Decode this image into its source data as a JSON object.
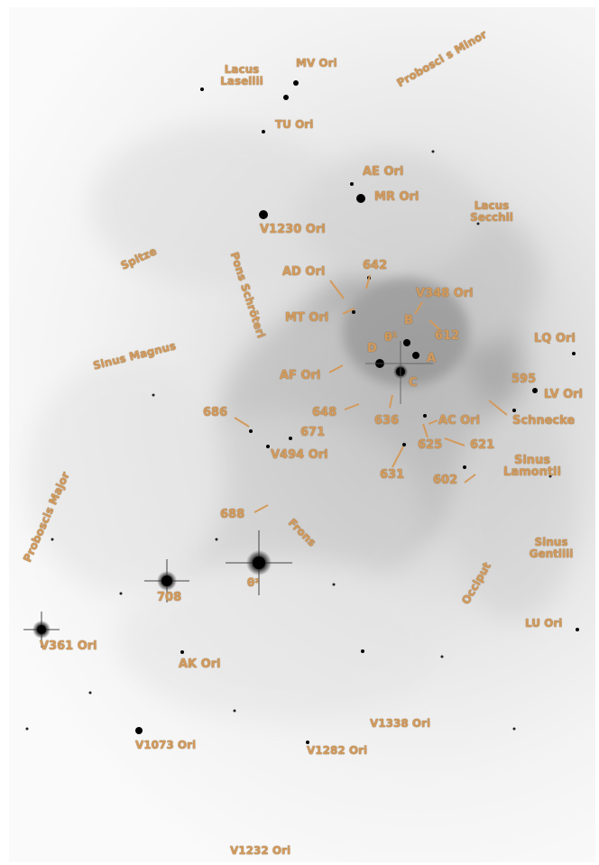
{
  "image": {
    "kind": "grayscale negative astronomical photograph of the Orion Nebula region with orange annotation labels",
    "colors": {
      "background": "#ffffff",
      "label": "#d39a5c",
      "nebula_dark": "#9a9a9a",
      "nebula_light": "#f0f0f0",
      "star": "#111111"
    }
  },
  "labels": {
    "lacus_laselli": "Lacus Lasellii",
    "mv_ori": "MV Ori",
    "proboscis_minor": "Probosci s Minor",
    "tu_ori": "TU Ori",
    "ae_ori": "AE Ori",
    "mr_ori": "MR Ori",
    "lacus_secchii": "Lacus Secchii",
    "v1230_ori": "V1230 Ori",
    "spitze": "Spitze",
    "pons_schroteri": "Pons Schröteri",
    "ad_ori": "AD Ori",
    "n642": "642",
    "v348_ori": "V348 Ori",
    "mt_ori": "MT Ori",
    "b": "B",
    "theta1": "θ¹",
    "n612": "612",
    "sinus_magnus": "Sinus Magnus",
    "d": "D",
    "a": "A",
    "lq_ori": "LQ Ori",
    "af_ori": "AF Ori",
    "c": "C",
    "n595": "595",
    "lv_ori": "LV Ori",
    "n686": "686",
    "n648": "648",
    "n636": "636",
    "ac_ori": "AC Ori",
    "schnecke": "Schnecke",
    "n671": "671",
    "n625": "625",
    "n621": "621",
    "v494_ori": "V494 Ori",
    "n631": "631",
    "sinus_lamontii": "Sinus Lamontii",
    "n602": "602",
    "n688": "688",
    "frons": "Frons",
    "proboscis_major": "Proboscis Major",
    "sinus_gentilii": "Sinus Gentilii",
    "occiput": "Occiput",
    "n708": "708",
    "theta2": "θ²",
    "lu_ori": "LU Ori",
    "v361_ori": "V361 Ori",
    "ak_ori": "AK Ori",
    "v1338_ori": "V1338 Ori",
    "v1073_ori": "V1073 Ori",
    "v1282_ori": "V1282 Ori",
    "v1232_ori": "V1232 Ori"
  }
}
